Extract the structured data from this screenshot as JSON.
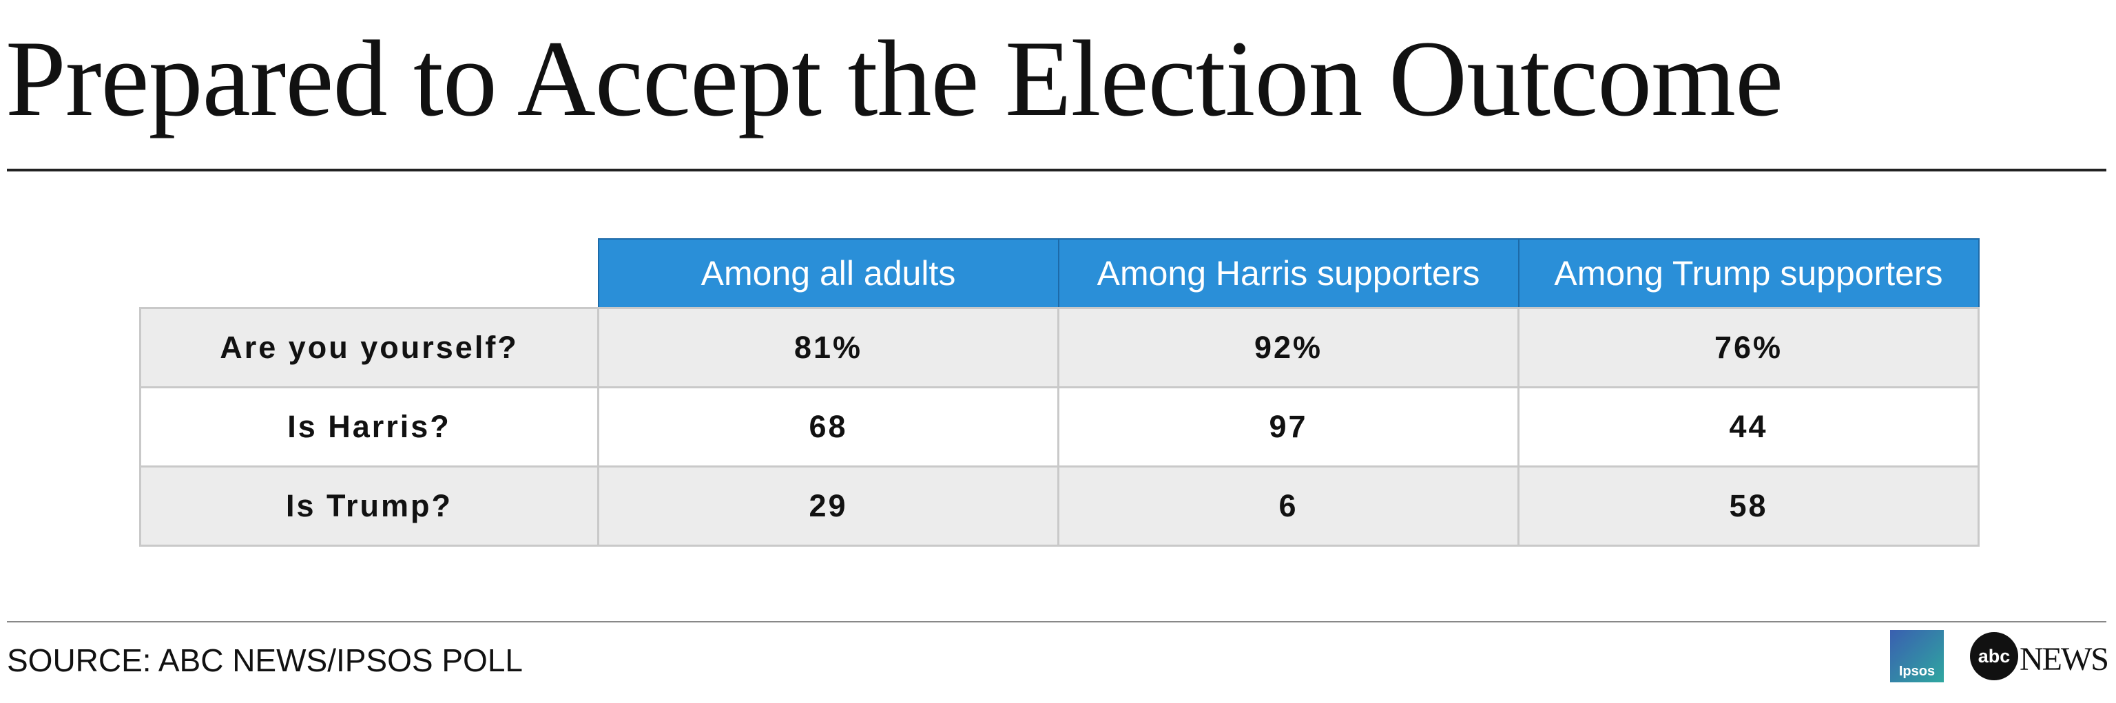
{
  "header": {
    "title": "Prepared to Accept the Election Outcome"
  },
  "table": {
    "columns": [
      "Among all adults",
      "Among Harris supporters",
      "Among Trump supporters"
    ],
    "rows": [
      [
        "Are you yourself?",
        "81%",
        "92%",
        "76%"
      ],
      [
        "Is Harris?",
        "68",
        "97",
        "44"
      ],
      [
        "Is Trump?",
        "29",
        "6",
        "58"
      ]
    ]
  },
  "footer": {
    "source": "SOURCE: ABC NEWS/IPSOS POLL",
    "logos": [
      "Ipsos",
      "abc",
      "NEWS"
    ]
  }
}
